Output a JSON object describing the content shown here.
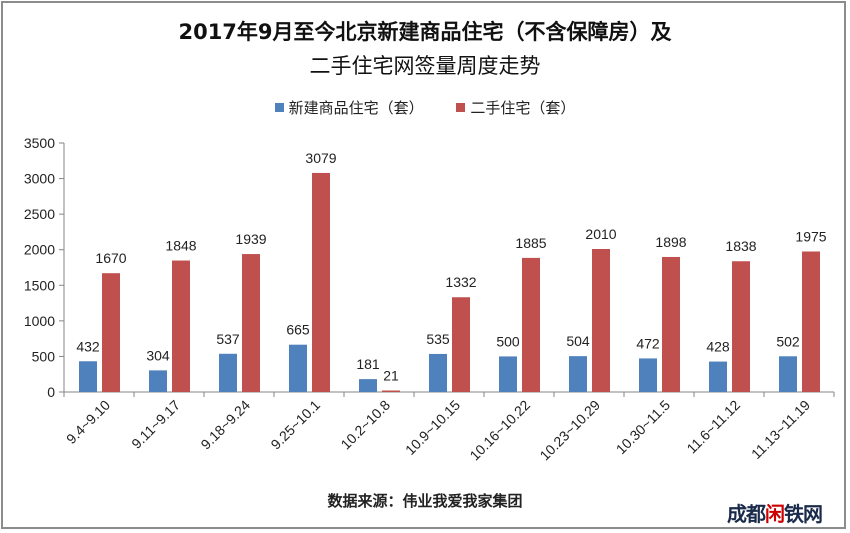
{
  "chart_data": {
    "type": "bar",
    "title": "2017年9月至今北京新建商品住宅（不含保障房）及",
    "title_line2": "二手住宅网签量周度走势",
    "categories": [
      "9.4~9.10",
      "9.11~9.17",
      "9.18~9.24",
      "9.25~10.1",
      "10.2~10.8",
      "10.9~10.15",
      "10.16~10.22",
      "10.23~10.29",
      "10.30~11.5",
      "11.6~11.12",
      "11.13~11.19"
    ],
    "series": [
      {
        "name": "新建商品住宅（套）",
        "color": "#4f81bd",
        "values": [
          432,
          304,
          537,
          665,
          181,
          535,
          500,
          504,
          472,
          428,
          502
        ]
      },
      {
        "name": "二手住宅（套）",
        "color": "#c0504d",
        "values": [
          1670,
          1848,
          1939,
          3079,
          21,
          1332,
          1885,
          2010,
          1898,
          1838,
          1975
        ]
      }
    ],
    "ylim": [
      0,
      3500
    ],
    "yticks": [
      0,
      500,
      1000,
      1500,
      2000,
      2500,
      3000,
      3500
    ],
    "xlabel": "",
    "ylabel": "",
    "legend_position": "top",
    "grid": false,
    "source": "数据来源：伟业我爱我家集团"
  },
  "watermark": "成都闲铁网"
}
